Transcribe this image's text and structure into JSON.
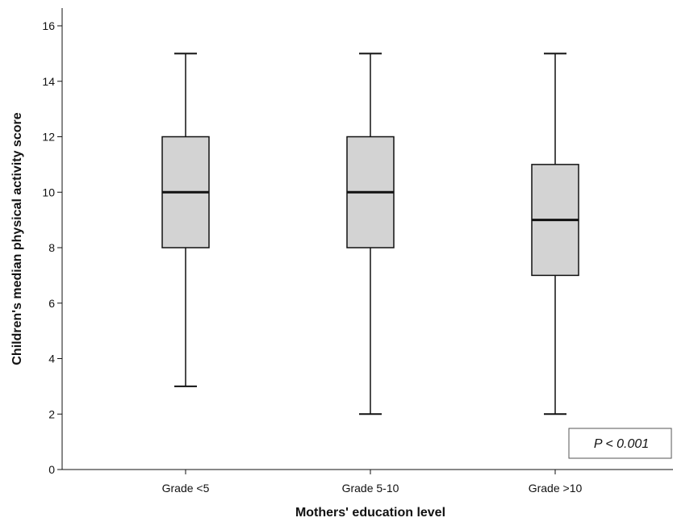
{
  "chart_data": {
    "type": "boxplot",
    "title": "",
    "xlabel": "Mothers' education level",
    "ylabel": "Children's median physical activity score",
    "ylim": [
      0,
      16
    ],
    "yticks": [
      0,
      2,
      4,
      6,
      8,
      10,
      12,
      14,
      16
    ],
    "grid": false,
    "categories": [
      "Grade <5",
      "Grade 5-10",
      "Grade >10"
    ],
    "boxes": [
      {
        "category": "Grade <5",
        "min": 3,
        "q1": 8,
        "median": 10,
        "q3": 12,
        "max": 15
      },
      {
        "category": "Grade 5-10",
        "min": 2,
        "q1": 8,
        "median": 10,
        "q3": 12,
        "max": 15
      },
      {
        "category": "Grade >10",
        "min": 2,
        "q1": 7,
        "median": 9,
        "q3": 11,
        "max": 15
      }
    ],
    "box_color": "#d3d3d3",
    "line_color": "#111111",
    "annotation": "P < 0.001",
    "annotation_position": "bottom-right"
  }
}
